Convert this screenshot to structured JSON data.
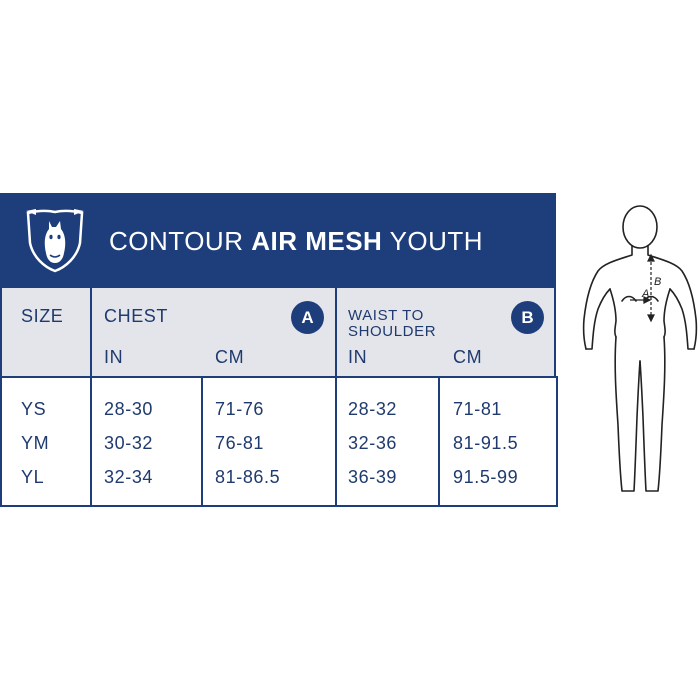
{
  "title": {
    "prefix": "CONTOUR ",
    "bold": "AIR MESH",
    "suffix": " YOUTH"
  },
  "columns": {
    "size": "SIZE",
    "chest": {
      "label": "CHEST",
      "badge": "A",
      "sub": [
        "IN",
        "CM"
      ]
    },
    "waist": {
      "label_line1": "WAIST TO",
      "label_line2": "SHOULDER",
      "badge": "B",
      "sub": [
        "IN",
        "CM"
      ]
    }
  },
  "rows": [
    {
      "size": "YS",
      "chest_in": "28-30",
      "chest_cm": "71-76",
      "waist_in": "28-32",
      "waist_cm": "71-81"
    },
    {
      "size": "YM",
      "chest_in": "30-32",
      "chest_cm": "76-81",
      "waist_in": "32-36",
      "waist_cm": "81-91.5"
    },
    {
      "size": "YL",
      "chest_in": "32-34",
      "chest_cm": "81-86.5",
      "waist_in": "36-39",
      "waist_cm": "91.5-99"
    }
  ],
  "figure": {
    "label_a": "A",
    "label_b": "B"
  },
  "icons": {
    "logo": "horse-head-shield-icon",
    "figure": "body-measurement-figure-icon"
  },
  "colors": {
    "navy": "#1e3d7b",
    "header_gray": "#e3e5ea",
    "text": "#1f3a6e"
  }
}
